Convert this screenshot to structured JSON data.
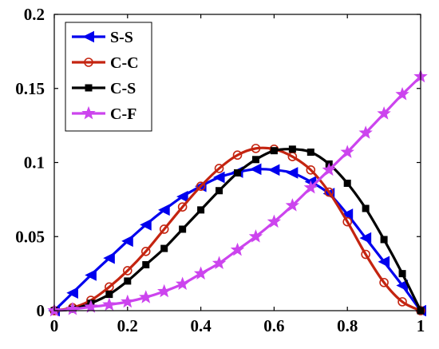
{
  "chart_data": {
    "type": "line",
    "title": "",
    "xlabel": "",
    "ylabel": "",
    "xlim": [
      0,
      1
    ],
    "ylim": [
      0,
      0.2
    ],
    "x_ticks": [
      0,
      0.2,
      0.4,
      0.6,
      0.8,
      1
    ],
    "x_tick_labels": [
      "0",
      "0.2",
      "0.4",
      "0.6",
      "0.8",
      "1"
    ],
    "y_ticks": [
      0,
      0.05,
      0.1,
      0.15,
      0.2
    ],
    "y_tick_labels": [
      "0",
      "0.05",
      "0.1",
      "0.15",
      "0.2"
    ],
    "grid": false,
    "legend_position": "top-left",
    "x": [
      0,
      0.05,
      0.1,
      0.15,
      0.2,
      0.25,
      0.3,
      0.35,
      0.4,
      0.45,
      0.5,
      0.55,
      0.6,
      0.65,
      0.7,
      0.75,
      0.8,
      0.85,
      0.9,
      0.95,
      1
    ],
    "series": [
      {
        "name": "S-S",
        "color": "#0000ee",
        "marker": "triangle-left",
        "values": [
          0,
          0.012,
          0.024,
          0.0355,
          0.047,
          0.058,
          0.068,
          0.077,
          0.084,
          0.09,
          0.0935,
          0.0955,
          0.095,
          0.093,
          0.087,
          0.079,
          0.065,
          0.049,
          0.033,
          0.017,
          0
        ]
      },
      {
        "name": "C-C",
        "color": "#c42410",
        "marker": "circle",
        "values": [
          0,
          0.002,
          0.007,
          0.016,
          0.027,
          0.04,
          0.055,
          0.07,
          0.084,
          0.096,
          0.105,
          0.1095,
          0.109,
          0.104,
          0.095,
          0.08,
          0.06,
          0.038,
          0.019,
          0.006,
          0
        ]
      },
      {
        "name": "C-S",
        "color": "#000000",
        "marker": "square",
        "values": [
          0,
          0.001,
          0.005,
          0.011,
          0.02,
          0.031,
          0.042,
          0.055,
          0.068,
          0.081,
          0.093,
          0.102,
          0.108,
          0.109,
          0.107,
          0.099,
          0.086,
          0.069,
          0.048,
          0.025,
          0
        ]
      },
      {
        "name": "C-F",
        "color": "#cc44ee",
        "marker": "star",
        "values": [
          0,
          0.001,
          0.0025,
          0.004,
          0.006,
          0.009,
          0.013,
          0.018,
          0.025,
          0.032,
          0.041,
          0.05,
          0.06,
          0.071,
          0.083,
          0.095,
          0.107,
          0.12,
          0.133,
          0.146,
          0.158
        ]
      }
    ]
  }
}
